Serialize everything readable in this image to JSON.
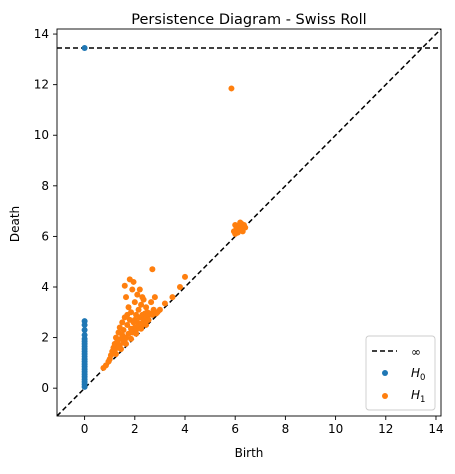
{
  "chart_data": {
    "type": "scatter",
    "title": "Persistence Diagram - Swiss Roll",
    "xlabel": "Birth",
    "ylabel": "Death",
    "xlim": [
      -1.1,
      14.2
    ],
    "ylim": [
      -1.1,
      14.2
    ],
    "xticks": [
      0,
      2,
      4,
      6,
      8,
      10,
      12,
      14
    ],
    "yticks": [
      0,
      2,
      4,
      6,
      8,
      10,
      12,
      14
    ],
    "grid": false,
    "legend_position": "lower-right",
    "infinity_level": 13.45,
    "legend": {
      "infinity_label": "∞",
      "h0_label": "H",
      "h0_sub": "0",
      "h1_label": "H",
      "h1_sub": "1"
    },
    "colors": {
      "h0": "#1f77b4",
      "h1": "#ff7f0e",
      "reference_lines": "#000000"
    },
    "series": [
      {
        "name": "H0",
        "points": [
          [
            0,
            13.45
          ],
          [
            0,
            0.05
          ],
          [
            0,
            0.15
          ],
          [
            0,
            0.25
          ],
          [
            0,
            0.35
          ],
          [
            0,
            0.45
          ],
          [
            0,
            0.55
          ],
          [
            0,
            0.65
          ],
          [
            0,
            0.75
          ],
          [
            0,
            0.85
          ],
          [
            0,
            0.95
          ],
          [
            0,
            1.05
          ],
          [
            0,
            1.15
          ],
          [
            0,
            1.25
          ],
          [
            0,
            1.35
          ],
          [
            0,
            1.45
          ],
          [
            0,
            1.55
          ],
          [
            0,
            1.65
          ],
          [
            0,
            1.75
          ],
          [
            0,
            1.85
          ],
          [
            0,
            1.95
          ],
          [
            0,
            2.1
          ],
          [
            0,
            2.3
          ],
          [
            0,
            2.5
          ],
          [
            0,
            2.65
          ]
        ]
      },
      {
        "name": "H1",
        "points": [
          [
            5.85,
            11.85
          ],
          [
            0.75,
            0.8
          ],
          [
            0.85,
            0.9
          ],
          [
            0.95,
            1.05
          ],
          [
            1.0,
            1.15
          ],
          [
            1.05,
            1.3
          ],
          [
            1.1,
            1.45
          ],
          [
            1.15,
            1.6
          ],
          [
            1.2,
            1.75
          ],
          [
            1.2,
            1.5
          ],
          [
            1.25,
            2.0
          ],
          [
            1.3,
            1.85
          ],
          [
            1.35,
            2.2
          ],
          [
            1.4,
            1.7
          ],
          [
            1.4,
            2.4
          ],
          [
            1.45,
            1.95
          ],
          [
            1.5,
            2.6
          ],
          [
            1.5,
            2.1
          ],
          [
            1.55,
            1.8
          ],
          [
            1.55,
            2.3
          ],
          [
            1.6,
            4.05
          ],
          [
            1.6,
            2.8
          ],
          [
            1.65,
            3.6
          ],
          [
            1.65,
            2.0
          ],
          [
            1.7,
            2.5
          ],
          [
            1.75,
            2.15
          ],
          [
            1.75,
            3.2
          ],
          [
            1.8,
            2.7
          ],
          [
            1.8,
            4.3
          ],
          [
            1.85,
            2.35
          ],
          [
            1.85,
            3.0
          ],
          [
            1.9,
            2.2
          ],
          [
            1.9,
            3.9
          ],
          [
            1.95,
            2.6
          ],
          [
            1.95,
            4.2
          ],
          [
            2.0,
            2.4
          ],
          [
            2.0,
            3.4
          ],
          [
            2.05,
            2.9
          ],
          [
            2.05,
            2.3
          ],
          [
            2.1,
            3.7
          ],
          [
            2.1,
            2.6
          ],
          [
            2.15,
            3.1
          ],
          [
            2.15,
            2.45
          ],
          [
            2.2,
            2.8
          ],
          [
            2.2,
            3.9
          ],
          [
            2.25,
            2.55
          ],
          [
            2.25,
            3.3
          ],
          [
            2.3,
            2.9
          ],
          [
            2.3,
            2.5
          ],
          [
            2.35,
            3.5
          ],
          [
            2.35,
            2.7
          ],
          [
            2.4,
            2.95
          ],
          [
            2.4,
            2.6
          ],
          [
            2.45,
            3.2
          ],
          [
            2.5,
            2.8
          ],
          [
            2.5,
            3.0
          ],
          [
            2.55,
            2.7
          ],
          [
            2.6,
            2.95
          ],
          [
            2.65,
            3.4
          ],
          [
            2.7,
            4.7
          ],
          [
            2.7,
            2.9
          ],
          [
            2.75,
            3.1
          ],
          [
            2.8,
            3.6
          ],
          [
            2.85,
            2.95
          ],
          [
            2.9,
            3.0
          ],
          [
            3.0,
            3.1
          ],
          [
            3.2,
            3.35
          ],
          [
            3.5,
            3.6
          ],
          [
            3.8,
            4.0
          ],
          [
            4.0,
            4.4
          ],
          [
            1.25,
            1.35
          ],
          [
            1.45,
            1.55
          ],
          [
            1.65,
            1.75
          ],
          [
            1.85,
            1.95
          ],
          [
            2.05,
            2.15
          ],
          [
            2.25,
            2.35
          ],
          [
            2.45,
            2.5
          ],
          [
            1.35,
            1.6
          ],
          [
            1.6,
            1.9
          ],
          [
            2.0,
            2.7
          ],
          [
            1.7,
            2.9
          ],
          [
            2.3,
            3.6
          ],
          [
            5.95,
            6.2
          ],
          [
            6.0,
            6.45
          ],
          [
            6.05,
            6.3
          ],
          [
            6.1,
            6.15
          ],
          [
            6.15,
            6.4
          ],
          [
            6.2,
            6.25
          ],
          [
            6.25,
            6.5
          ],
          [
            6.3,
            6.3
          ],
          [
            6.35,
            6.45
          ],
          [
            6.4,
            6.35
          ],
          [
            6.0,
            6.1
          ],
          [
            6.2,
            6.55
          ],
          [
            6.3,
            6.2
          ]
        ]
      }
    ]
  }
}
